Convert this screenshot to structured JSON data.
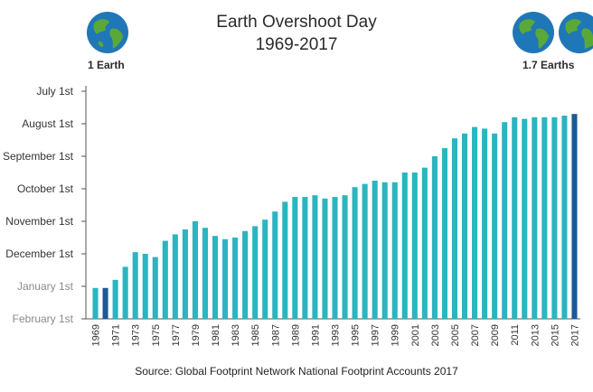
{
  "header": {
    "title_line1": "Earth Overshoot Day",
    "title_line2": "1969-2017",
    "left_badge": "1 Earth",
    "right_badge": "1.7 Earths",
    "left_icon": "earth-globe-icon",
    "right_icon": "two-earth-globes-icon"
  },
  "source": "Source: Global Footprint Network National Footprint Accounts 2017",
  "colors": {
    "bar": "#2bb5c0",
    "highlight": "#1a5a96",
    "axis": "#555555",
    "ocean": "#1f77b8",
    "land": "#5aa83a"
  },
  "chart_data": {
    "type": "bar",
    "y_axis_unit": "date of Earth Overshoot Day",
    "y_tick_labels": [
      "July 1st",
      "August 1st",
      "September 1st",
      "October 1st",
      "November 1st",
      "December 1st",
      "January 1st",
      "February 1st"
    ],
    "ylim": [
      0,
      7
    ],
    "x_tick_labels": [
      "1969",
      "1971",
      "1973",
      "1975",
      "1977",
      "1979",
      "1981",
      "1983",
      "1985",
      "1987",
      "1989",
      "1991",
      "1993",
      "1995",
      "1997",
      "1999",
      "2001",
      "2003",
      "2005",
      "2007",
      "2009",
      "2011",
      "2013",
      "2015",
      "2017"
    ],
    "categories": [
      "1969",
      "1970",
      "1971",
      "1972",
      "1973",
      "1974",
      "1975",
      "1976",
      "1977",
      "1978",
      "1979",
      "1980",
      "1981",
      "1982",
      "1983",
      "1984",
      "1985",
      "1986",
      "1987",
      "1988",
      "1989",
      "1990",
      "1991",
      "1992",
      "1993",
      "1994",
      "1995",
      "1996",
      "1997",
      "1998",
      "1999",
      "2000",
      "2001",
      "2002",
      "2003",
      "2004",
      "2005",
      "2006",
      "2007",
      "2008",
      "2009",
      "2010",
      "2011",
      "2012",
      "2013",
      "2014",
      "2015",
      "2016",
      "2017"
    ],
    "values": [
      0.95,
      0.95,
      1.2,
      1.6,
      2.05,
      2.0,
      1.9,
      2.4,
      2.6,
      2.75,
      3.0,
      2.8,
      2.55,
      2.45,
      2.5,
      2.7,
      2.85,
      3.05,
      3.3,
      3.6,
      3.75,
      3.75,
      3.8,
      3.7,
      3.75,
      3.8,
      4.05,
      4.15,
      4.25,
      4.2,
      4.2,
      4.5,
      4.5,
      4.65,
      5.0,
      5.25,
      5.55,
      5.7,
      5.9,
      5.85,
      5.7,
      6.05,
      6.2,
      6.15,
      6.2,
      6.2,
      6.2,
      6.25,
      6.3
    ],
    "highlighted": [
      "1970",
      "2017"
    ],
    "title": "Earth Overshoot Day 1969-2017",
    "grid": false,
    "legend": "none"
  }
}
